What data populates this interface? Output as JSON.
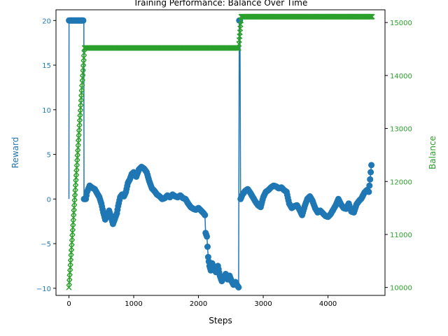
{
  "chart_data": {
    "type": "line",
    "title": "Training Performance: Balance Over Time",
    "xlabel": "Steps",
    "ylabel_left": "Reward",
    "ylabel_right": "Balance",
    "xlim": [
      -200,
      4880
    ],
    "ylim_left": [
      -10.8,
      21.2
    ],
    "ylim_right": [
      9850,
      15240
    ],
    "xticks": [
      0,
      1000,
      2000,
      3000,
      4000
    ],
    "yticks_left": [
      -10,
      -5,
      0,
      5,
      10,
      15,
      20
    ],
    "yticks_right": [
      10000,
      11000,
      12000,
      13000,
      14000,
      15000
    ],
    "grid": false,
    "colors": {
      "reward": "#1f77b4",
      "balance": "#2ca02c",
      "axis": "#000000"
    },
    "series": [
      {
        "axis": "left",
        "marker": "circle",
        "points": [
          [
            0,
            0
          ],
          [
            1,
            20
          ],
          [
            50,
            20
          ],
          [
            100,
            20
          ],
          [
            150,
            20
          ],
          [
            200,
            20
          ],
          [
            230,
            20
          ],
          [
            232,
            0
          ],
          [
            260,
            0
          ],
          [
            280,
            0.8
          ],
          [
            320,
            1.5
          ],
          [
            350,
            1.3
          ],
          [
            400,
            1.1
          ],
          [
            430,
            0.7
          ],
          [
            470,
            0.2
          ],
          [
            500,
            -0.5
          ],
          [
            530,
            -1.5
          ],
          [
            560,
            -2.3
          ],
          [
            590,
            -1.8
          ],
          [
            620,
            -1.3
          ],
          [
            650,
            -2.0
          ],
          [
            680,
            -2.8
          ],
          [
            710,
            -2.2
          ],
          [
            740,
            -1.6
          ],
          [
            760,
            -0.8
          ],
          [
            790,
            0.2
          ],
          [
            820,
            0.5
          ],
          [
            850,
            0.3
          ],
          [
            880,
            0.8
          ],
          [
            910,
            1.8
          ],
          [
            940,
            2.2
          ],
          [
            970,
            2.8
          ],
          [
            1000,
            3.0
          ],
          [
            1040,
            2.5
          ],
          [
            1080,
            3.3
          ],
          [
            1120,
            3.6
          ],
          [
            1160,
            3.4
          ],
          [
            1200,
            3.0
          ],
          [
            1240,
            2.0
          ],
          [
            1280,
            1.2
          ],
          [
            1320,
            0.9
          ],
          [
            1360,
            0.5
          ],
          [
            1400,
            0.3
          ],
          [
            1440,
            0.0
          ],
          [
            1480,
            0.1
          ],
          [
            1520,
            0.4
          ],
          [
            1560,
            0.2
          ],
          [
            1600,
            0.5
          ],
          [
            1640,
            0.3
          ],
          [
            1680,
            0.2
          ],
          [
            1720,
            0.4
          ],
          [
            1760,
            0.1
          ],
          [
            1800,
            0.0
          ],
          [
            1840,
            -0.5
          ],
          [
            1880,
            -0.9
          ],
          [
            1920,
            -1.1
          ],
          [
            1960,
            -1.2
          ],
          [
            2000,
            -1.0
          ],
          [
            2040,
            -1.3
          ],
          [
            2080,
            -1.6
          ],
          [
            2100,
            -1.8
          ],
          [
            2110,
            -3.8
          ],
          [
            2130,
            -4.2
          ],
          [
            2150,
            -6.5
          ],
          [
            2170,
            -7.5
          ],
          [
            2190,
            -8.0
          ],
          [
            2210,
            -7.2
          ],
          [
            2240,
            -7.8
          ],
          [
            2270,
            -8.2
          ],
          [
            2300,
            -7.5
          ],
          [
            2330,
            -8.6
          ],
          [
            2360,
            -9.2
          ],
          [
            2390,
            -8.8
          ],
          [
            2420,
            -8.4
          ],
          [
            2450,
            -9.0
          ],
          [
            2480,
            -8.6
          ],
          [
            2510,
            -9.2
          ],
          [
            2540,
            -9.6
          ],
          [
            2570,
            -9.3
          ],
          [
            2600,
            -9.7
          ],
          [
            2620,
            -9.9
          ],
          [
            2630,
            20
          ],
          [
            2640,
            20
          ],
          [
            2650,
            0
          ],
          [
            2680,
            0.5
          ],
          [
            2720,
            0.9
          ],
          [
            2760,
            1.1
          ],
          [
            2800,
            0.7
          ],
          [
            2840,
            0.2
          ],
          [
            2880,
            -0.3
          ],
          [
            2920,
            -0.7
          ],
          [
            2960,
            -0.9
          ],
          [
            3000,
            0.2
          ],
          [
            3040,
            0.8
          ],
          [
            3080,
            1.0
          ],
          [
            3120,
            1.3
          ],
          [
            3160,
            1.5
          ],
          [
            3200,
            1.4
          ],
          [
            3240,
            1.2
          ],
          [
            3280,
            1.3
          ],
          [
            3320,
            1.0
          ],
          [
            3360,
            0.8
          ],
          [
            3400,
            -0.5
          ],
          [
            3440,
            -1.0
          ],
          [
            3480,
            -0.8
          ],
          [
            3520,
            -0.7
          ],
          [
            3560,
            -1.2
          ],
          [
            3600,
            -1.8
          ],
          [
            3640,
            -0.8
          ],
          [
            3680,
            0.0
          ],
          [
            3720,
            0.3
          ],
          [
            3760,
            -0.2
          ],
          [
            3800,
            -1.0
          ],
          [
            3840,
            -1.5
          ],
          [
            3880,
            -1.3
          ],
          [
            3920,
            -1.6
          ],
          [
            3960,
            -1.9
          ],
          [
            4000,
            -2.0
          ],
          [
            4040,
            -1.7
          ],
          [
            4080,
            -1.2
          ],
          [
            4120,
            -0.7
          ],
          [
            4160,
            0.0
          ],
          [
            4200,
            -0.6
          ],
          [
            4240,
            -1.0
          ],
          [
            4280,
            -1.1
          ],
          [
            4320,
            -0.5
          ],
          [
            4360,
            -1.4
          ],
          [
            4400,
            -1.5
          ],
          [
            4440,
            -0.6
          ],
          [
            4480,
            -0.2
          ],
          [
            4520,
            0.1
          ],
          [
            4560,
            0.7
          ],
          [
            4600,
            1.0
          ],
          [
            4630,
            0.8
          ],
          [
            4650,
            2.2
          ],
          [
            4660,
            3.0
          ],
          [
            4670,
            3.8
          ]
        ]
      },
      {
        "axis": "right",
        "marker": "x",
        "points": [
          [
            0,
            10000
          ],
          [
            240,
            14520
          ],
          [
            2620,
            14520
          ],
          [
            2660,
            15110
          ],
          [
            4680,
            15110
          ]
        ]
      }
    ]
  }
}
